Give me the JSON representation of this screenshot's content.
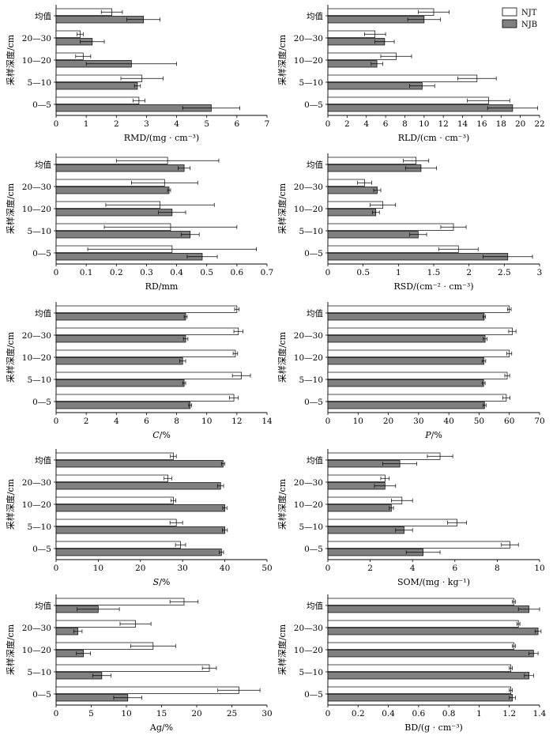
{
  "legend": {
    "position": "top-right",
    "items": [
      {
        "name": "NJT",
        "fill": "#ffffff"
      },
      {
        "name": "NJB",
        "fill": "#808080"
      }
    ]
  },
  "colors": {
    "NJT": "#ffffff",
    "NJB": "#808080",
    "stroke": "#000000"
  },
  "chart_data": [
    {
      "type": "bar",
      "orientation": "horizontal",
      "categories": [
        "0—5",
        "5—10",
        "10—20",
        "20—30",
        "均值"
      ],
      "ylabel": "采样深度/cm",
      "xlabel": "RMD/(mg · cm⁻³)",
      "xlim": [
        0,
        7
      ],
      "xticks": [
        0,
        1,
        2,
        3,
        4,
        5,
        6,
        7
      ],
      "series": [
        {
          "name": "NJT",
          "values": [
            2.75,
            2.85,
            0.9,
            0.8,
            1.85
          ],
          "errors": [
            0.2,
            0.7,
            0.25,
            0.1,
            0.35
          ]
        },
        {
          "name": "NJB",
          "values": [
            5.15,
            2.7,
            2.5,
            1.2,
            2.9
          ],
          "errors": [
            0.95,
            0.1,
            1.5,
            0.4,
            0.55
          ]
        }
      ]
    },
    {
      "type": "bar",
      "orientation": "horizontal",
      "categories": [
        "0—5",
        "5—10",
        "10—20",
        "20—30",
        "均值"
      ],
      "ylabel": "采样深度/cm",
      "xlabel": "RLD/(cm · cm⁻³)",
      "xlim": [
        0,
        22
      ],
      "xticks": [
        0,
        2,
        4,
        6,
        8,
        10,
        12,
        14,
        16,
        18,
        20,
        22
      ],
      "series": [
        {
          "name": "NJT",
          "values": [
            16.7,
            15.5,
            7.1,
            4.9,
            11.0
          ],
          "errors": [
            2.2,
            2.0,
            1.6,
            1.1,
            1.6
          ]
        },
        {
          "name": "NJB",
          "values": [
            19.2,
            9.8,
            5.1,
            5.9,
            10.0
          ],
          "errors": [
            2.6,
            1.3,
            0.6,
            1.0,
            1.7
          ]
        }
      ]
    },
    {
      "type": "bar",
      "orientation": "horizontal",
      "categories": [
        "0—5",
        "5—10",
        "10—20",
        "20—30",
        "均值"
      ],
      "ylabel": "采样深度/cm",
      "xlabel": "RD/mm",
      "xlim": [
        0,
        0.7
      ],
      "xticks": [
        0,
        0.1,
        0.2,
        0.3,
        0.4,
        0.5,
        0.6,
        0.7
      ],
      "series": [
        {
          "name": "NJT",
          "values": [
            0.385,
            0.38,
            0.345,
            0.36,
            0.37
          ],
          "errors": [
            0.28,
            0.22,
            0.18,
            0.11,
            0.17
          ]
        },
        {
          "name": "NJB",
          "values": [
            0.485,
            0.445,
            0.385,
            0.375,
            0.425
          ],
          "errors": [
            0.05,
            0.03,
            0.045,
            0.005,
            0.02
          ]
        }
      ]
    },
    {
      "type": "bar",
      "orientation": "horizontal",
      "categories": [
        "0—5",
        "5—10",
        "10—20",
        "20—30",
        "均值"
      ],
      "ylabel": "采样深度/cm",
      "xlabel": "RSD/(cm⁻² · cm⁻³)",
      "xlim": [
        0,
        3.0
      ],
      "xticks": [
        0,
        0.5,
        1.0,
        1.5,
        2.0,
        2.5,
        3.0
      ],
      "series": [
        {
          "name": "NJT",
          "values": [
            1.85,
            1.78,
            0.78,
            0.52,
            1.25
          ],
          "errors": [
            0.28,
            0.18,
            0.18,
            0.1,
            0.18
          ]
        },
        {
          "name": "NJB",
          "values": [
            2.55,
            1.28,
            0.68,
            0.7,
            1.32
          ],
          "errors": [
            0.35,
            0.12,
            0.05,
            0.05,
            0.22
          ]
        }
      ]
    },
    {
      "type": "bar",
      "orientation": "horizontal",
      "categories": [
        "0—5",
        "5—10",
        "10—20",
        "20—30",
        "均值"
      ],
      "ylabel": "采样深度/cm",
      "xlabel": "C/%",
      "xlabel_italic": "C",
      "xlim": [
        0,
        14
      ],
      "xticks": [
        0,
        2,
        4,
        6,
        8,
        10,
        12,
        14
      ],
      "series": [
        {
          "name": "NJT",
          "values": [
            11.8,
            12.3,
            11.9,
            12.1,
            12.0
          ],
          "errors": [
            0.3,
            0.6,
            0.15,
            0.3,
            0.15
          ]
        },
        {
          "name": "NJB",
          "values": [
            8.9,
            8.5,
            8.4,
            8.6,
            8.6
          ],
          "errors": [
            0.1,
            0.1,
            0.2,
            0.15,
            0.1
          ]
        }
      ]
    },
    {
      "type": "bar",
      "orientation": "horizontal",
      "categories": [
        "0—5",
        "5—10",
        "10—20",
        "20—30",
        "均值"
      ],
      "ylabel": "采样深度/cm",
      "xlabel": "P/%",
      "xlabel_italic": "P",
      "xlim": [
        0,
        70
      ],
      "xticks": [
        0,
        10,
        20,
        30,
        40,
        50,
        60,
        70
      ],
      "series": [
        {
          "name": "NJT",
          "values": [
            59.0,
            59.3,
            60.0,
            61.0,
            60.0
          ],
          "errors": [
            1.2,
            0.8,
            0.8,
            1.2,
            0.6
          ]
        },
        {
          "name": "NJB",
          "values": [
            51.8,
            51.5,
            51.6,
            52.0,
            51.7
          ],
          "errors": [
            0.5,
            0.5,
            0.6,
            0.6,
            0.4
          ]
        }
      ]
    },
    {
      "type": "bar",
      "orientation": "horizontal",
      "categories": [
        "0—5",
        "5—10",
        "10—20",
        "20—30",
        "均值"
      ],
      "ylabel": "采样深度/cm",
      "xlabel": "S/%",
      "xlabel_italic": "S",
      "xlim": [
        0,
        50
      ],
      "xticks": [
        0,
        10,
        20,
        30,
        40,
        50
      ],
      "series": [
        {
          "name": "NJT",
          "values": [
            29.5,
            28.5,
            27.8,
            26.5,
            27.8
          ],
          "errors": [
            1.2,
            1.5,
            0.6,
            0.9,
            0.7
          ]
        },
        {
          "name": "NJB",
          "values": [
            39.2,
            40.0,
            40.0,
            39.0,
            39.6
          ],
          "errors": [
            0.5,
            0.6,
            0.5,
            0.7,
            0.4
          ]
        }
      ]
    },
    {
      "type": "bar",
      "orientation": "horizontal",
      "categories": [
        "0—5",
        "5—10",
        "10—20",
        "20—30",
        "均值"
      ],
      "ylabel": "采样深度/cm",
      "xlabel": "SOM/(mg · kg⁻¹)",
      "xlim": [
        0,
        10
      ],
      "xticks": [
        0,
        2,
        4,
        6,
        8,
        10
      ],
      "series": [
        {
          "name": "NJT",
          "values": [
            8.6,
            6.1,
            3.5,
            2.7,
            5.3
          ],
          "errors": [
            0.4,
            0.45,
            0.5,
            0.2,
            0.6
          ]
        },
        {
          "name": "NJB",
          "values": [
            4.5,
            3.6,
            3.0,
            2.7,
            3.4
          ],
          "errors": [
            0.8,
            0.4,
            0.1,
            0.5,
            0.8
          ]
        }
      ]
    },
    {
      "type": "bar",
      "orientation": "horizontal",
      "categories": [
        "0—5",
        "5—10",
        "10—20",
        "20—30",
        "均值"
      ],
      "ylabel": "采样深度/cm",
      "xlabel": "Ag/%",
      "xlim": [
        0,
        30
      ],
      "xticks": [
        0,
        5,
        10,
        15,
        20,
        25,
        30
      ],
      "series": [
        {
          "name": "NJT",
          "values": [
            26.0,
            21.8,
            13.8,
            11.3,
            18.2
          ],
          "errors": [
            3.0,
            1.0,
            3.2,
            2.2,
            2.0
          ]
        },
        {
          "name": "NJB",
          "values": [
            10.2,
            6.5,
            3.9,
            3.1,
            6.0
          ],
          "errors": [
            2.0,
            1.3,
            1.0,
            0.6,
            3.0
          ]
        }
      ]
    },
    {
      "type": "bar",
      "orientation": "horizontal",
      "categories": [
        "0—5",
        "5—10",
        "10—20",
        "20—30",
        "均值"
      ],
      "ylabel": "采样深度/cm",
      "xlabel": "BD/(g · cm⁻³)",
      "xlim": [
        0,
        1.4
      ],
      "xticks": [
        0,
        0.2,
        0.4,
        0.6,
        0.8,
        1.0,
        1.2,
        1.4
      ],
      "series": [
        {
          "name": "NJT",
          "values": [
            1.21,
            1.21,
            1.23,
            1.26,
            1.23
          ],
          "errors": [
            0.01,
            0.01,
            0.01,
            0.01,
            0.01
          ]
        },
        {
          "name": "NJB",
          "values": [
            1.22,
            1.33,
            1.36,
            1.39,
            1.33
          ],
          "errors": [
            0.02,
            0.03,
            0.03,
            0.02,
            0.07
          ]
        }
      ]
    }
  ]
}
